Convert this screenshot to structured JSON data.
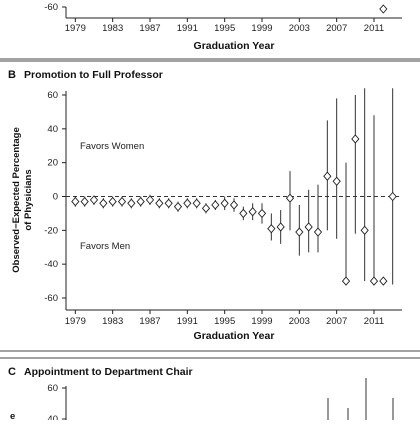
{
  "panels": {
    "A": {
      "letter": "",
      "title": "",
      "xlabel": "Graduation Year",
      "x_ticks": [
        1979,
        1983,
        1987,
        1991,
        1995,
        1999,
        2003,
        2007,
        2011
      ],
      "y_ticks_visible": [
        -60
      ]
    },
    "B": {
      "letter": "B",
      "title": "Promotion to Full Professor",
      "ylabel_line1": "Observed−Expected Percentage",
      "ylabel_line2": "of Physicians",
      "xlabel": "Graduation Year",
      "favors_women": "Favors Women",
      "favors_men": "Favors Men"
    },
    "C": {
      "letter": "C",
      "title": "Appointment to Department Chair",
      "y_ticks_visible": [
        60,
        40
      ]
    }
  },
  "chart_data": [
    {
      "type": "scatter",
      "panel": "A",
      "title": "",
      "xlabel": "Graduation Year",
      "ylabel": "",
      "note": "Only the bottom edge of this panel is visible; one point near 2012 at about -57."
    },
    {
      "type": "scatter",
      "panel": "B",
      "title": "Promotion to Full Professor",
      "xlabel": "Graduation Year",
      "ylabel": "Observed−Expected Percentage of Physicians",
      "xlim": [
        1978,
        2014
      ],
      "ylim": [
        -65,
        65
      ],
      "x_ticks": [
        1979,
        1983,
        1987,
        1991,
        1995,
        1999,
        2003,
        2007,
        2011
      ],
      "y_ticks": [
        -60,
        -40,
        -20,
        0,
        20,
        40,
        60
      ],
      "reference_line": 0,
      "annotations": [
        "Favors Women",
        "Favors Men"
      ],
      "points": [
        {
          "x": 1979,
          "y": -3,
          "lo": -6,
          "hi": 0
        },
        {
          "x": 1980,
          "y": -3,
          "lo": -6,
          "hi": 0
        },
        {
          "x": 1981,
          "y": -2,
          "lo": -5,
          "hi": 0
        },
        {
          "x": 1982,
          "y": -4,
          "lo": -7,
          "hi": -1
        },
        {
          "x": 1983,
          "y": -3,
          "lo": -6,
          "hi": 0
        },
        {
          "x": 1984,
          "y": -3,
          "lo": -6,
          "hi": 0
        },
        {
          "x": 1985,
          "y": -4,
          "lo": -7,
          "hi": -1
        },
        {
          "x": 1986,
          "y": -3,
          "lo": -6,
          "hi": 0
        },
        {
          "x": 1987,
          "y": -2,
          "lo": -5,
          "hi": 1
        },
        {
          "x": 1988,
          "y": -4,
          "lo": -7,
          "hi": -1
        },
        {
          "x": 1989,
          "y": -4,
          "lo": -7,
          "hi": -1
        },
        {
          "x": 1990,
          "y": -6,
          "lo": -9,
          "hi": -3
        },
        {
          "x": 1991,
          "y": -4,
          "lo": -7,
          "hi": -1
        },
        {
          "x": 1992,
          "y": -4,
          "lo": -7,
          "hi": -1
        },
        {
          "x": 1993,
          "y": -7,
          "lo": -10,
          "hi": -4
        },
        {
          "x": 1994,
          "y": -5,
          "lo": -8,
          "hi": -2
        },
        {
          "x": 1995,
          "y": -4,
          "lo": -8,
          "hi": 0
        },
        {
          "x": 1996,
          "y": -5,
          "lo": -9,
          "hi": -1
        },
        {
          "x": 1997,
          "y": -10,
          "lo": -14,
          "hi": -6
        },
        {
          "x": 1998,
          "y": -9,
          "lo": -14,
          "hi": -4
        },
        {
          "x": 1999,
          "y": -10,
          "lo": -16,
          "hi": -4
        },
        {
          "x": 2000,
          "y": -19,
          "lo": -26,
          "hi": -10
        },
        {
          "x": 2001,
          "y": -18,
          "lo": -28,
          "hi": -8
        },
        {
          "x": 2002,
          "y": -1,
          "lo": -20,
          "hi": 15
        },
        {
          "x": 2003,
          "y": -21,
          "lo": -35,
          "hi": -5
        },
        {
          "x": 2004,
          "y": -18,
          "lo": -33,
          "hi": 4
        },
        {
          "x": 2005,
          "y": -21,
          "lo": -33,
          "hi": 7
        },
        {
          "x": 2006,
          "y": 12,
          "lo": -20,
          "hi": 45
        },
        {
          "x": 2007,
          "y": 9,
          "lo": -25,
          "hi": 58
        },
        {
          "x": 2008,
          "y": -50,
          "lo": -50,
          "hi": 20
        },
        {
          "x": 2009,
          "y": 34,
          "lo": -22,
          "hi": 60
        },
        {
          "x": 2010,
          "y": -20,
          "lo": -50,
          "hi": 64
        },
        {
          "x": 2011,
          "y": -50,
          "lo": -50,
          "hi": 48
        },
        {
          "x": 2012,
          "y": -50,
          "lo": -50,
          "hi": -50
        },
        {
          "x": 2013,
          "y": 0,
          "lo": -52,
          "hi": 64
        }
      ]
    },
    {
      "type": "scatter",
      "panel": "C",
      "title": "Appointment to Department Chair",
      "y_ticks_visible": [
        60,
        40
      ],
      "note": "Only the top of this panel is visible."
    }
  ]
}
